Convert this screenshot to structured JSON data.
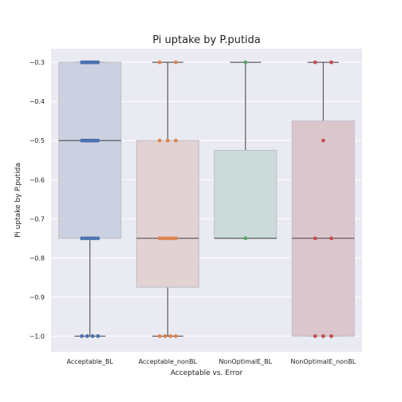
{
  "chart_data": {
    "type": "box",
    "title": "Pi uptake by P.putida",
    "xlabel": "Acceptable vs. Error",
    "ylabel": "Pi uptake by P.putida",
    "ylim": [
      -1.04,
      -0.265
    ],
    "yticks": [
      -0.3,
      -0.4,
      -0.5,
      -0.6,
      -0.7,
      -0.8,
      -0.9,
      -1.0
    ],
    "ytick_labels": [
      "−0.3",
      "−0.4",
      "−0.5",
      "−0.6",
      "−0.7",
      "−0.8",
      "−0.9",
      "−1.0"
    ],
    "grid": true,
    "categories": [
      "Acceptable_BL",
      "Acceptable_nonBL",
      "NonOptimalE_BL",
      "NonOptimalE_nonBL"
    ],
    "colors": {
      "box_fills": [
        "#ccd1e1",
        "#e3d2d3",
        "#ccdbd9",
        "#dcc6cd"
      ],
      "points": [
        "#4c72b0",
        "#dd8452",
        "#55a868",
        "#c44e52"
      ],
      "background": "#eaeaf2",
      "grid": "#ffffff",
      "lines": "#3f3f3f"
    },
    "boxes": [
      {
        "category": "Acceptable_BL",
        "whisker_low": -1.0,
        "q1": -0.75,
        "median": -0.5,
        "q3": -0.3,
        "whisker_high": -0.3
      },
      {
        "category": "Acceptable_nonBL",
        "whisker_low": -1.0,
        "q1": -0.875,
        "median": -0.75,
        "q3": -0.5,
        "whisker_high": -0.3
      },
      {
        "category": "NonOptimalE_BL",
        "whisker_low": -0.75,
        "q1": -0.75,
        "median": -0.75,
        "q3": -0.525,
        "whisker_high": -0.3
      },
      {
        "category": "NonOptimalE_nonBL",
        "whisker_low": -1.0,
        "q1": -1.0,
        "median": -0.75,
        "q3": -0.45,
        "whisker_high": -0.3
      }
    ],
    "points": [
      {
        "category": "Acceptable_BL",
        "values": [
          -0.3,
          -0.3,
          -0.3,
          -0.3,
          -0.3,
          -0.3,
          -0.3,
          -0.3,
          -0.3,
          -0.3,
          -0.3,
          -0.5,
          -0.5,
          -0.5,
          -0.5,
          -0.5,
          -0.5,
          -0.5,
          -0.5,
          -0.5,
          -0.5,
          -0.5,
          -0.5,
          -0.75,
          -0.75,
          -0.75,
          -0.75,
          -0.75,
          -0.75,
          -0.75,
          -1.0,
          -1.0,
          -1.0,
          -1.0
        ]
      },
      {
        "category": "Acceptable_nonBL",
        "values": [
          -0.3,
          -0.3,
          -0.5,
          -0.5,
          -0.5,
          -0.75,
          -0.75,
          -0.75,
          -0.75,
          -0.75,
          -0.75,
          -0.75,
          -1.0,
          -1.0,
          -1.0,
          -1.0
        ]
      },
      {
        "category": "NonOptimalE_BL",
        "values": [
          -0.3,
          -0.75
        ]
      },
      {
        "category": "NonOptimalE_nonBL",
        "values": [
          -0.3,
          -0.3,
          -0.5,
          -0.75,
          -0.75,
          -1.0,
          -1.0,
          -1.0
        ]
      }
    ]
  }
}
